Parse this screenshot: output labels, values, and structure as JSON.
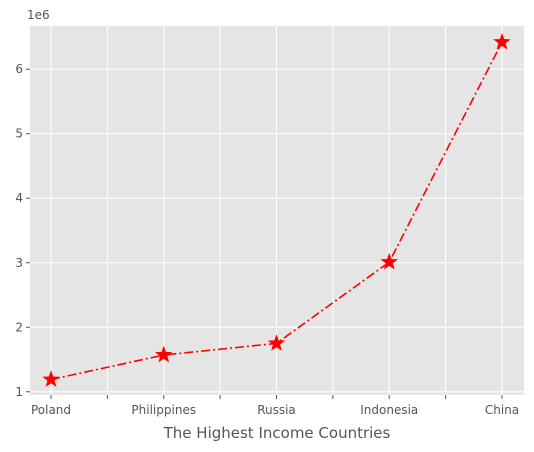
{
  "chart_data": {
    "type": "line",
    "categories": [
      "Poland",
      "Philippines",
      "Russia",
      "Indonesia",
      "China"
    ],
    "series": [
      {
        "values": [
          1190000,
          1570000,
          1750000,
          3010000,
          6420000
        ]
      }
    ],
    "xlabel": "The Highest Income Countries",
    "ylabel": "",
    "y_offset_label": "1e6",
    "y_scale": 1000000,
    "ylim": [
      950000,
      6670000
    ],
    "yticks": [
      1000000,
      2000000,
      3000000,
      4000000,
      5000000,
      6000000
    ],
    "ytick_labels": [
      "1",
      "2",
      "3",
      "4",
      "5",
      "6"
    ],
    "grid": true,
    "line_color": "#ff0000",
    "line_style": "dash-dot",
    "marker": "star",
    "background_color": "#e5e5e5",
    "grid_color": "#ffffff"
  }
}
